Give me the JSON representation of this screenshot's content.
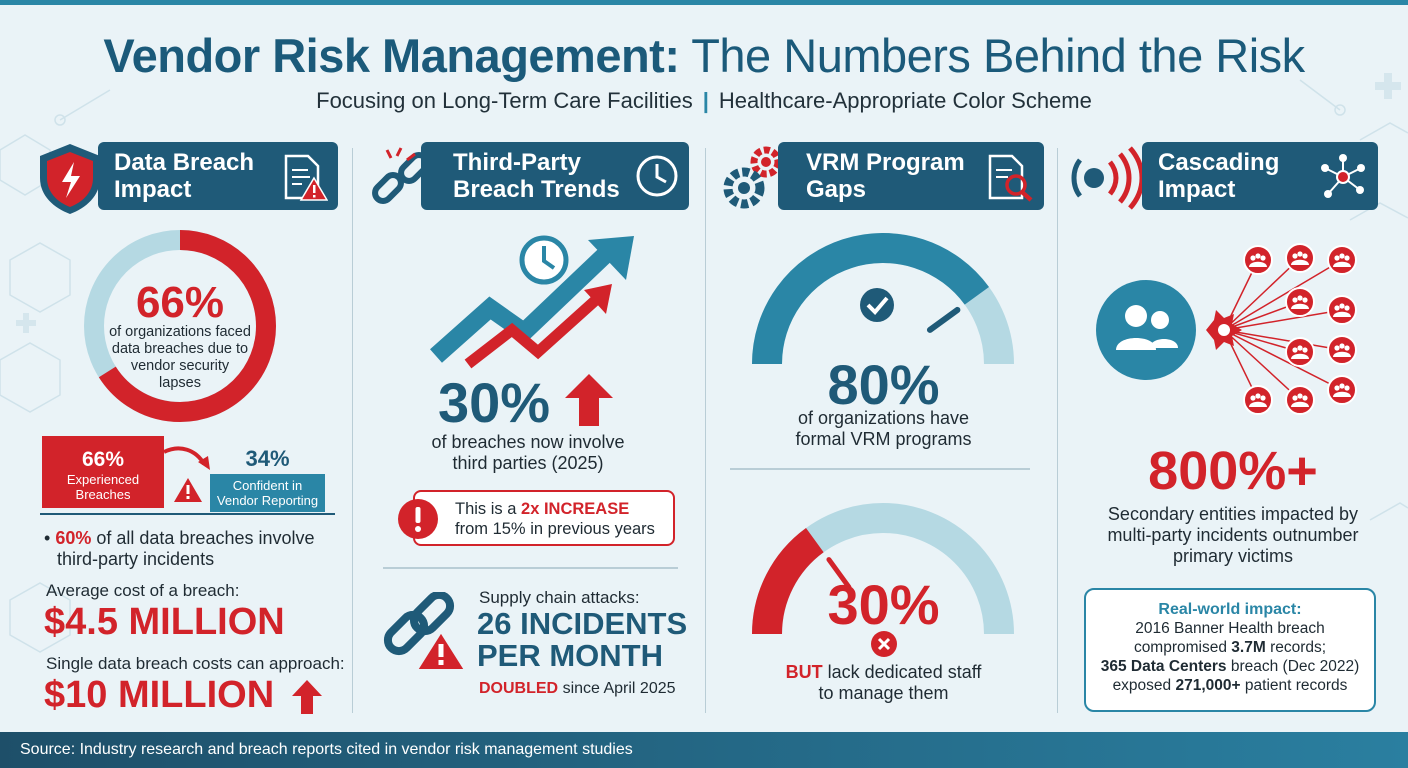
{
  "header": {
    "title_bold": "Vendor Risk Management:",
    "title_rest": "The Numbers Behind the Risk",
    "subtitle_left": "Focusing on Long-Term Care Facilities",
    "subtitle_sep": "|",
    "subtitle_right": "Healthcare-Appropriate Color Scheme"
  },
  "colors": {
    "primary": "#1f5a78",
    "accent_red": "#d2232a",
    "teal": "#2a86a6",
    "light_teal": "#b5d9e3",
    "background": "#eaf3f7"
  },
  "col1": {
    "header_line1": "Data Breach",
    "header_line2": "Impact",
    "donut_value": "66%",
    "donut_fraction": 0.66,
    "donut_text": [
      "of organizations faced",
      "data breaches due to",
      "vendor security",
      "lapses"
    ],
    "box_red_value": "66%",
    "box_red_line1": "Experienced",
    "box_red_line2": "Breaches",
    "box_teal_value": "34%",
    "box_teal_line1": "Confident in",
    "box_teal_line2": "Vendor Reporting",
    "bullet": "•",
    "bullet_pct": "60%",
    "bullet_rest": "of all data breaches involve",
    "bullet_line2": "third-party incidents",
    "avg_label": "Average cost of a breach:",
    "avg_value": "$4.5 MILLION",
    "single_label": "Single data breach costs can approach:",
    "single_value": "$10 MILLION",
    "icons": [
      "shield-alert-icon",
      "document-warning-icon",
      "curved-arrow-icon",
      "warning-icon",
      "arrow-up-icon"
    ]
  },
  "col2": {
    "header_line1": "Third-Party",
    "header_line2": "Breach Trends",
    "big_value": "30%",
    "text_line1": "of breaches now involve",
    "text_line2": "third parties (2025)",
    "alert_prefix": "This is a",
    "alert_bold": "2x INCREASE",
    "alert_line2": "from 15% in previous years",
    "supply_label": "Supply chain attacks:",
    "supply_value_line1": "26 INCIDENTS",
    "supply_value_line2": "PER MONTH",
    "doubled_bold": "DOUBLED",
    "doubled_rest": "since April 2025",
    "icons": [
      "broken-chain-icon",
      "clock-icon",
      "trend-arrows-icon",
      "arrow-up-icon",
      "exclamation-icon",
      "chain-warning-icon"
    ]
  },
  "col3": {
    "header_line1": "VRM Program",
    "header_line2": "Gaps",
    "gauge1_value": "80%",
    "gauge1_fraction": 0.8,
    "gauge1_line1": "of organizations have",
    "gauge1_line2": "formal VRM programs",
    "gauge2_value": "30%",
    "gauge2_fraction": 0.3,
    "gauge2_bold": "BUT",
    "gauge2_rest": "lack dedicated staff",
    "gauge2_line2": "to manage them",
    "icons": [
      "gears-icon",
      "document-search-icon",
      "checkmark-icon",
      "x-circle-icon"
    ]
  },
  "col4": {
    "header_line1": "Cascading",
    "header_line2": "Impact",
    "big_value": "800%+",
    "text_line1": "Secondary entities impacted by",
    "text_line2": "multi-party incidents outnumber",
    "text_line3": "primary victims",
    "box_title": "Real-world impact:",
    "box_line1": "2016 Banner Health breach",
    "box_line2_pre": "compromised",
    "box_line2_bold": "3.7M",
    "box_line2_post": "records;",
    "box_line3_bold": "365 Data Centers",
    "box_line3_post": "breach (Dec 2022)",
    "box_line4_pre": "exposed",
    "box_line4_bold": "271,000+",
    "box_line4_post": "patient records",
    "icons": [
      "broadcast-icon",
      "network-icon",
      "people-icon",
      "burst-icon"
    ]
  },
  "footer": {
    "source": "Source: Industry research and breach reports cited in vendor risk management studies"
  }
}
